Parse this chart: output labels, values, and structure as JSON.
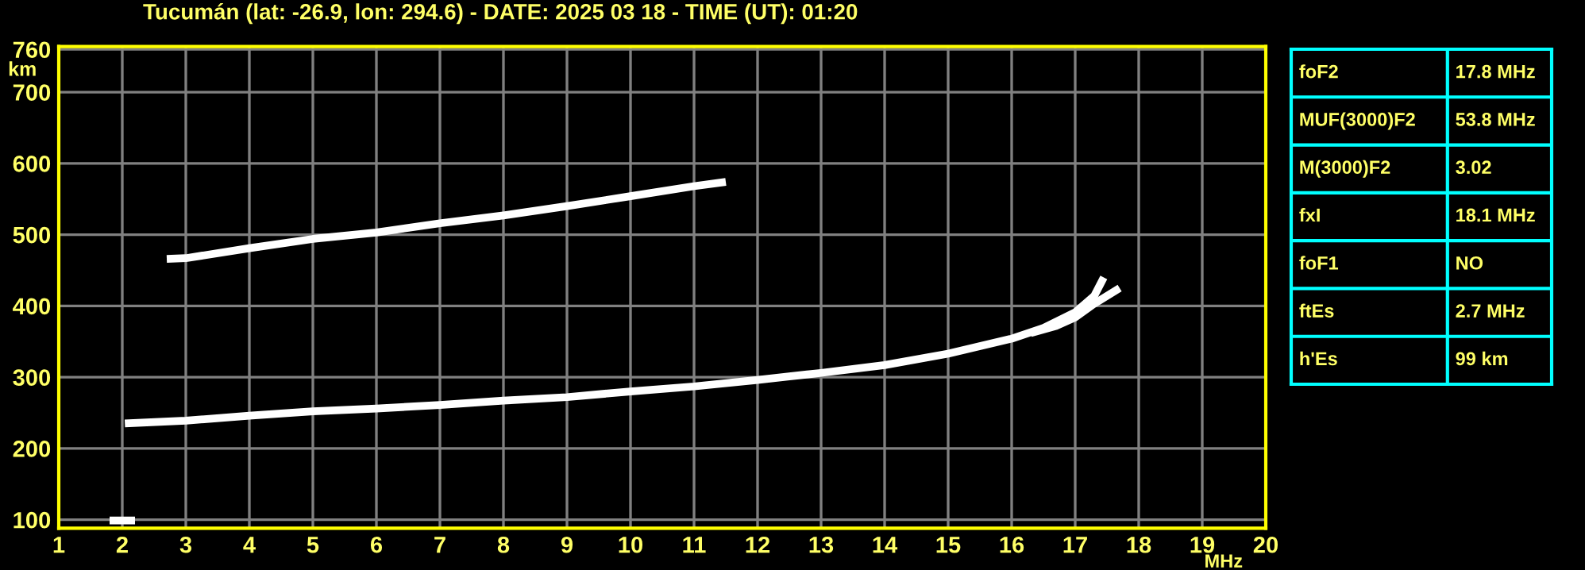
{
  "chart_data": [
    {
      "type": "line",
      "title": "Tucumán (lat: -26.9, lon: 294.6) - DATE: 2025 03 18 - TIME (UT): 01:20",
      "xlabel": "MHz",
      "ylabel": "km",
      "xlim": [
        1,
        20
      ],
      "ylim": [
        88,
        764
      ],
      "xticks": [
        1,
        2,
        3,
        4,
        5,
        6,
        7,
        8,
        9,
        10,
        11,
        12,
        13,
        14,
        15,
        16,
        17,
        18,
        19,
        20
      ],
      "yticks": [
        100,
        200,
        300,
        400,
        500,
        600,
        700,
        760
      ],
      "grid": true,
      "marker": "none",
      "line_style": "solid",
      "series": [
        {
          "color": "#ffffff",
          "x": [
            2.04,
            3,
            4,
            5,
            6,
            7,
            8,
            9,
            10,
            11,
            12,
            12.5,
            13,
            14,
            15,
            16,
            16.5,
            17,
            17.3,
            17.45
          ],
          "values": [
            235,
            239,
            246,
            252,
            256,
            261,
            267,
            272,
            280,
            287,
            296,
            301,
            306,
            317,
            333,
            354,
            369,
            391,
            414,
            440
          ]
        },
        {
          "color": "#ffffff",
          "x": [
            16.3,
            16.7,
            17,
            17.3,
            17.7
          ],
          "values": [
            362,
            372,
            384,
            403,
            425
          ]
        },
        {
          "color": "#ffffff",
          "x": [
            2.7,
            3,
            4,
            5,
            6,
            7,
            8,
            9,
            10,
            11,
            11.5
          ],
          "values": [
            466,
            467,
            481,
            494,
            503,
            516,
            527,
            540,
            554,
            568,
            574
          ]
        },
        {
          "color": "#ffffff",
          "x": [
            1.8,
            2.2
          ],
          "values": [
            99,
            99
          ]
        }
      ]
    },
    {
      "type": "other",
      "annotations": [
        "foF2",
        "17.8 MHz",
        "MUF(3000)F2",
        "53.8 MHz",
        "M(3000)F2",
        "3.02",
        "fxI",
        "18.1 MHz",
        "foF1",
        "NO",
        "ftEs",
        "2.7 MHz",
        "h'Es",
        "99 km"
      ]
    }
  ]
}
